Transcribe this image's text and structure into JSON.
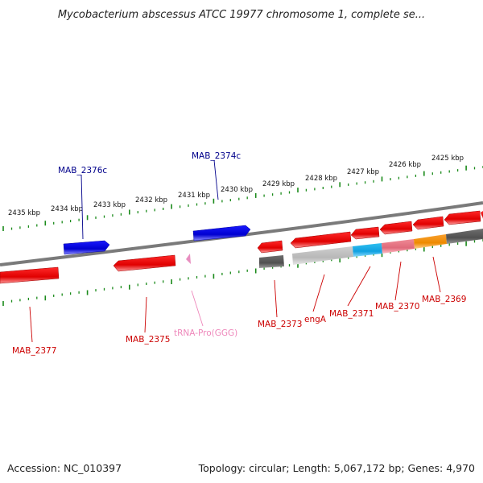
{
  "title": "Mycobacterium abscessus ATCC 19977 chromosome 1, complete se...",
  "footer": {
    "accession": "Accession: NC_010397",
    "summary": "Topology: circular; Length: 5,067,172 bp; Genes: 4,970"
  },
  "colors": {
    "backbone": "#808080",
    "tick": "#1a8a1a",
    "plus_strand_gene": "#0000dd",
    "minus_strand_gene": "#ee0000",
    "plus_label": "#00008b",
    "minus_label": "#cc0000",
    "trna": "#e88ec0",
    "trna_label": "#ee88bb",
    "cds_cyan": "#1ab0e8",
    "cds_pink": "#e87a88",
    "cds_orange": "#f08c10",
    "cds_dark_grey": "#606060",
    "cds_light_grey": "#c4c4c4"
  },
  "kbp_ticks": [
    "2425 kbp",
    "2426 kbp",
    "2427 kbp",
    "2428 kbp",
    "2429 kbp",
    "2430 kbp",
    "2431 kbp",
    "2432 kbp",
    "2433 kbp",
    "2434 kbp",
    "2435 kbp"
  ],
  "genes_plus": [
    "MAB_2374c",
    "MAB_2376c"
  ],
  "genes_minus": [
    "MAB_2369",
    "MAB_2370",
    "MAB_2371",
    "engA",
    "MAB_2373",
    "tRNA-Pro(GGG)",
    "MAB_2375",
    "MAB_2377"
  ]
}
